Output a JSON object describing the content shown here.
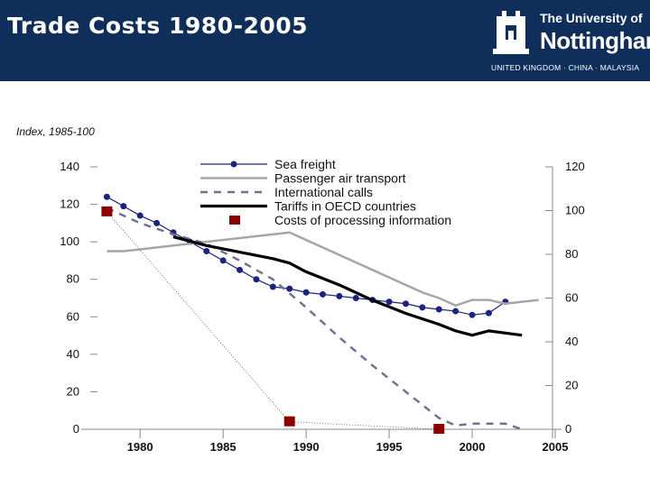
{
  "header": {
    "title": "Trade Costs 1980-2005",
    "logo_line1": "The University of",
    "logo_line2": "Nottingham",
    "logo_line3": "UNITED KINGDOM · CHINA · MALAYSIA"
  },
  "colors": {
    "header_bg": "#0f2f5a",
    "sea_freight": "#1a237e",
    "air_transport": "#a6a6a6",
    "intl_calls": "#6e7394",
    "tariffs": "#000000",
    "processing": "#8b0000"
  },
  "icons": [
    "crest-icon"
  ],
  "chart_data": {
    "type": "line",
    "subtitle": "Index, 1985-100",
    "xlim": [
      1977,
      2005
    ],
    "x_ticks": [
      1980,
      1985,
      1990,
      1995,
      2000,
      2005
    ],
    "left_axis": {
      "ylim": [
        0,
        140
      ],
      "ticks": [
        0,
        20,
        40,
        60,
        80,
        100,
        120,
        140
      ]
    },
    "right_axis": {
      "ylim": [
        0,
        120
      ],
      "ticks": [
        0,
        20,
        40,
        60,
        80,
        100,
        120
      ]
    },
    "series": [
      {
        "name": "Sea freight",
        "axis": "left",
        "style": "line-marker",
        "x": [
          1978,
          1979,
          1980,
          1981,
          1982,
          1983,
          1984,
          1985,
          1986,
          1987,
          1988,
          1989,
          1990,
          1991,
          1992,
          1993,
          1994,
          1995,
          1996,
          1997,
          1998,
          1999,
          2000,
          2001,
          2002
        ],
        "values": [
          124,
          119,
          114,
          110,
          105,
          100,
          95,
          90,
          85,
          80,
          76,
          75,
          73,
          72,
          71,
          70,
          69,
          68,
          67,
          65,
          64,
          63,
          61,
          62,
          68
        ]
      },
      {
        "name": "Passenger air transport",
        "axis": "left",
        "style": "line",
        "x": [
          1978,
          1979,
          1980,
          1981,
          1982,
          1983,
          1984,
          1985,
          1986,
          1987,
          1988,
          1989,
          1990,
          1991,
          1992,
          1993,
          1994,
          1995,
          1996,
          1997,
          1998,
          1999,
          2000,
          2001,
          2002,
          2003,
          2004
        ],
        "values": [
          95,
          95,
          96,
          97,
          98,
          99,
          100,
          101,
          102,
          103,
          104,
          105,
          101,
          97,
          93,
          89,
          85,
          81,
          77,
          73,
          70,
          66,
          69,
          69,
          67,
          68,
          69
        ]
      },
      {
        "name": "International calls",
        "axis": "left",
        "style": "dashed",
        "x": [
          1978,
          1980,
          1982,
          1984,
          1986,
          1988,
          1990,
          1992,
          1994,
          1996,
          1998,
          1999,
          2000,
          2001,
          2002,
          2003
        ],
        "values": [
          118,
          110,
          104,
          99,
          90,
          80,
          65,
          49,
          34,
          20,
          6,
          2,
          3,
          3,
          3,
          0
        ]
      },
      {
        "name": "Tariffs in OECD countries",
        "axis": "right",
        "style": "thick",
        "x": [
          1982,
          1984,
          1986,
          1988,
          1989,
          1990,
          1992,
          1994,
          1996,
          1998,
          1999,
          2000,
          2001,
          2002,
          2003
        ],
        "values": [
          88,
          84,
          81,
          78,
          76,
          72,
          66,
          59,
          53,
          48,
          45,
          43,
          45,
          44,
          43
        ]
      },
      {
        "name": "Costs of processing information",
        "axis": "left",
        "style": "square-dotted",
        "x": [
          1978,
          1989,
          1998
        ],
        "values": [
          116,
          4,
          0
        ]
      }
    ]
  }
}
